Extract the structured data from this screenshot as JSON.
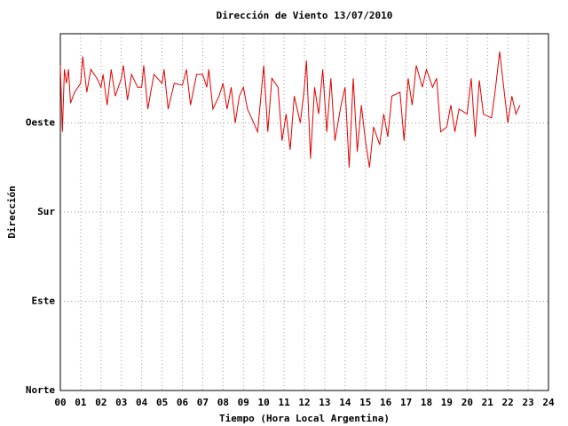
{
  "chart_data": {
    "type": "line",
    "title": "Dirección de Viento 13/07/2010",
    "x_label": "Tiempo (Hora Local Argentina)",
    "y_label": "Dirección",
    "color": "#e00000",
    "grid": true,
    "xlim": [
      0,
      24
    ],
    "ylim": [
      0,
      360
    ],
    "xticks": [
      {
        "value": 0,
        "label": "00"
      },
      {
        "value": 1,
        "label": "01"
      },
      {
        "value": 2,
        "label": "02"
      },
      {
        "value": 3,
        "label": "03"
      },
      {
        "value": 4,
        "label": "04"
      },
      {
        "value": 5,
        "label": "05"
      },
      {
        "value": 6,
        "label": "06"
      },
      {
        "value": 7,
        "label": "07"
      },
      {
        "value": 8,
        "label": "08"
      },
      {
        "value": 9,
        "label": "09"
      },
      10,
      11,
      12,
      13,
      14,
      15,
      16,
      17,
      18,
      19,
      20,
      21,
      22,
      23,
      24
    ],
    "yticks": [
      {
        "value": 0,
        "label": "Norte"
      },
      {
        "value": 90,
        "label": "Este"
      },
      {
        "value": 180,
        "label": "Sur"
      },
      {
        "value": 270,
        "label": "Oeste"
      }
    ],
    "x": [
      0.0,
      0.1,
      0.2,
      0.3,
      0.4,
      0.5,
      0.7,
      1.0,
      1.1,
      1.3,
      1.5,
      1.8,
      2.0,
      2.1,
      2.3,
      2.5,
      2.7,
      3.0,
      3.1,
      3.3,
      3.5,
      3.8,
      4.0,
      4.1,
      4.3,
      4.6,
      5.0,
      5.1,
      5.3,
      5.6,
      6.0,
      6.2,
      6.4,
      6.7,
      7.0,
      7.2,
      7.3,
      7.5,
      7.8,
      8.0,
      8.2,
      8.4,
      8.6,
      8.8,
      9.0,
      9.2,
      9.4,
      9.7,
      10.0,
      10.2,
      10.4,
      10.7,
      10.9,
      11.1,
      11.3,
      11.5,
      11.8,
      12.0,
      12.1,
      12.3,
      12.5,
      12.7,
      12.9,
      13.1,
      13.3,
      13.5,
      13.8,
      14.0,
      14.2,
      14.4,
      14.6,
      14.8,
      15.0,
      15.2,
      15.4,
      15.7,
      15.9,
      16.1,
      16.3,
      16.7,
      16.9,
      17.1,
      17.3,
      17.5,
      17.8,
      18.0,
      18.3,
      18.5,
      18.7,
      19.0,
      19.2,
      19.4,
      19.6,
      20.0,
      20.2,
      20.4,
      20.6,
      20.8,
      21.2,
      21.4,
      21.6,
      21.8,
      22.0,
      22.2,
      22.4,
      22.6
    ],
    "values": [
      328,
      261,
      324,
      310,
      324,
      290,
      301,
      310,
      337,
      301,
      324,
      315,
      306,
      319,
      288,
      324,
      297,
      315,
      328,
      293,
      319,
      306,
      306,
      328,
      284,
      319,
      310,
      324,
      284,
      310,
      308,
      324,
      288,
      319,
      319,
      306,
      324,
      284,
      297,
      310,
      284,
      306,
      270,
      297,
      306,
      284,
      275,
      261,
      328,
      261,
      315,
      306,
      252,
      279,
      243,
      297,
      270,
      306,
      333,
      234,
      306,
      279,
      324,
      261,
      315,
      252,
      288,
      306,
      225,
      315,
      241,
      288,
      252,
      225,
      266,
      248,
      279,
      256,
      297,
      301,
      252,
      315,
      288,
      328,
      306,
      324,
      306,
      315,
      261,
      266,
      288,
      261,
      284,
      279,
      315,
      256,
      313,
      279,
      275,
      306,
      342,
      306,
      270,
      297,
      279,
      288
    ]
  }
}
